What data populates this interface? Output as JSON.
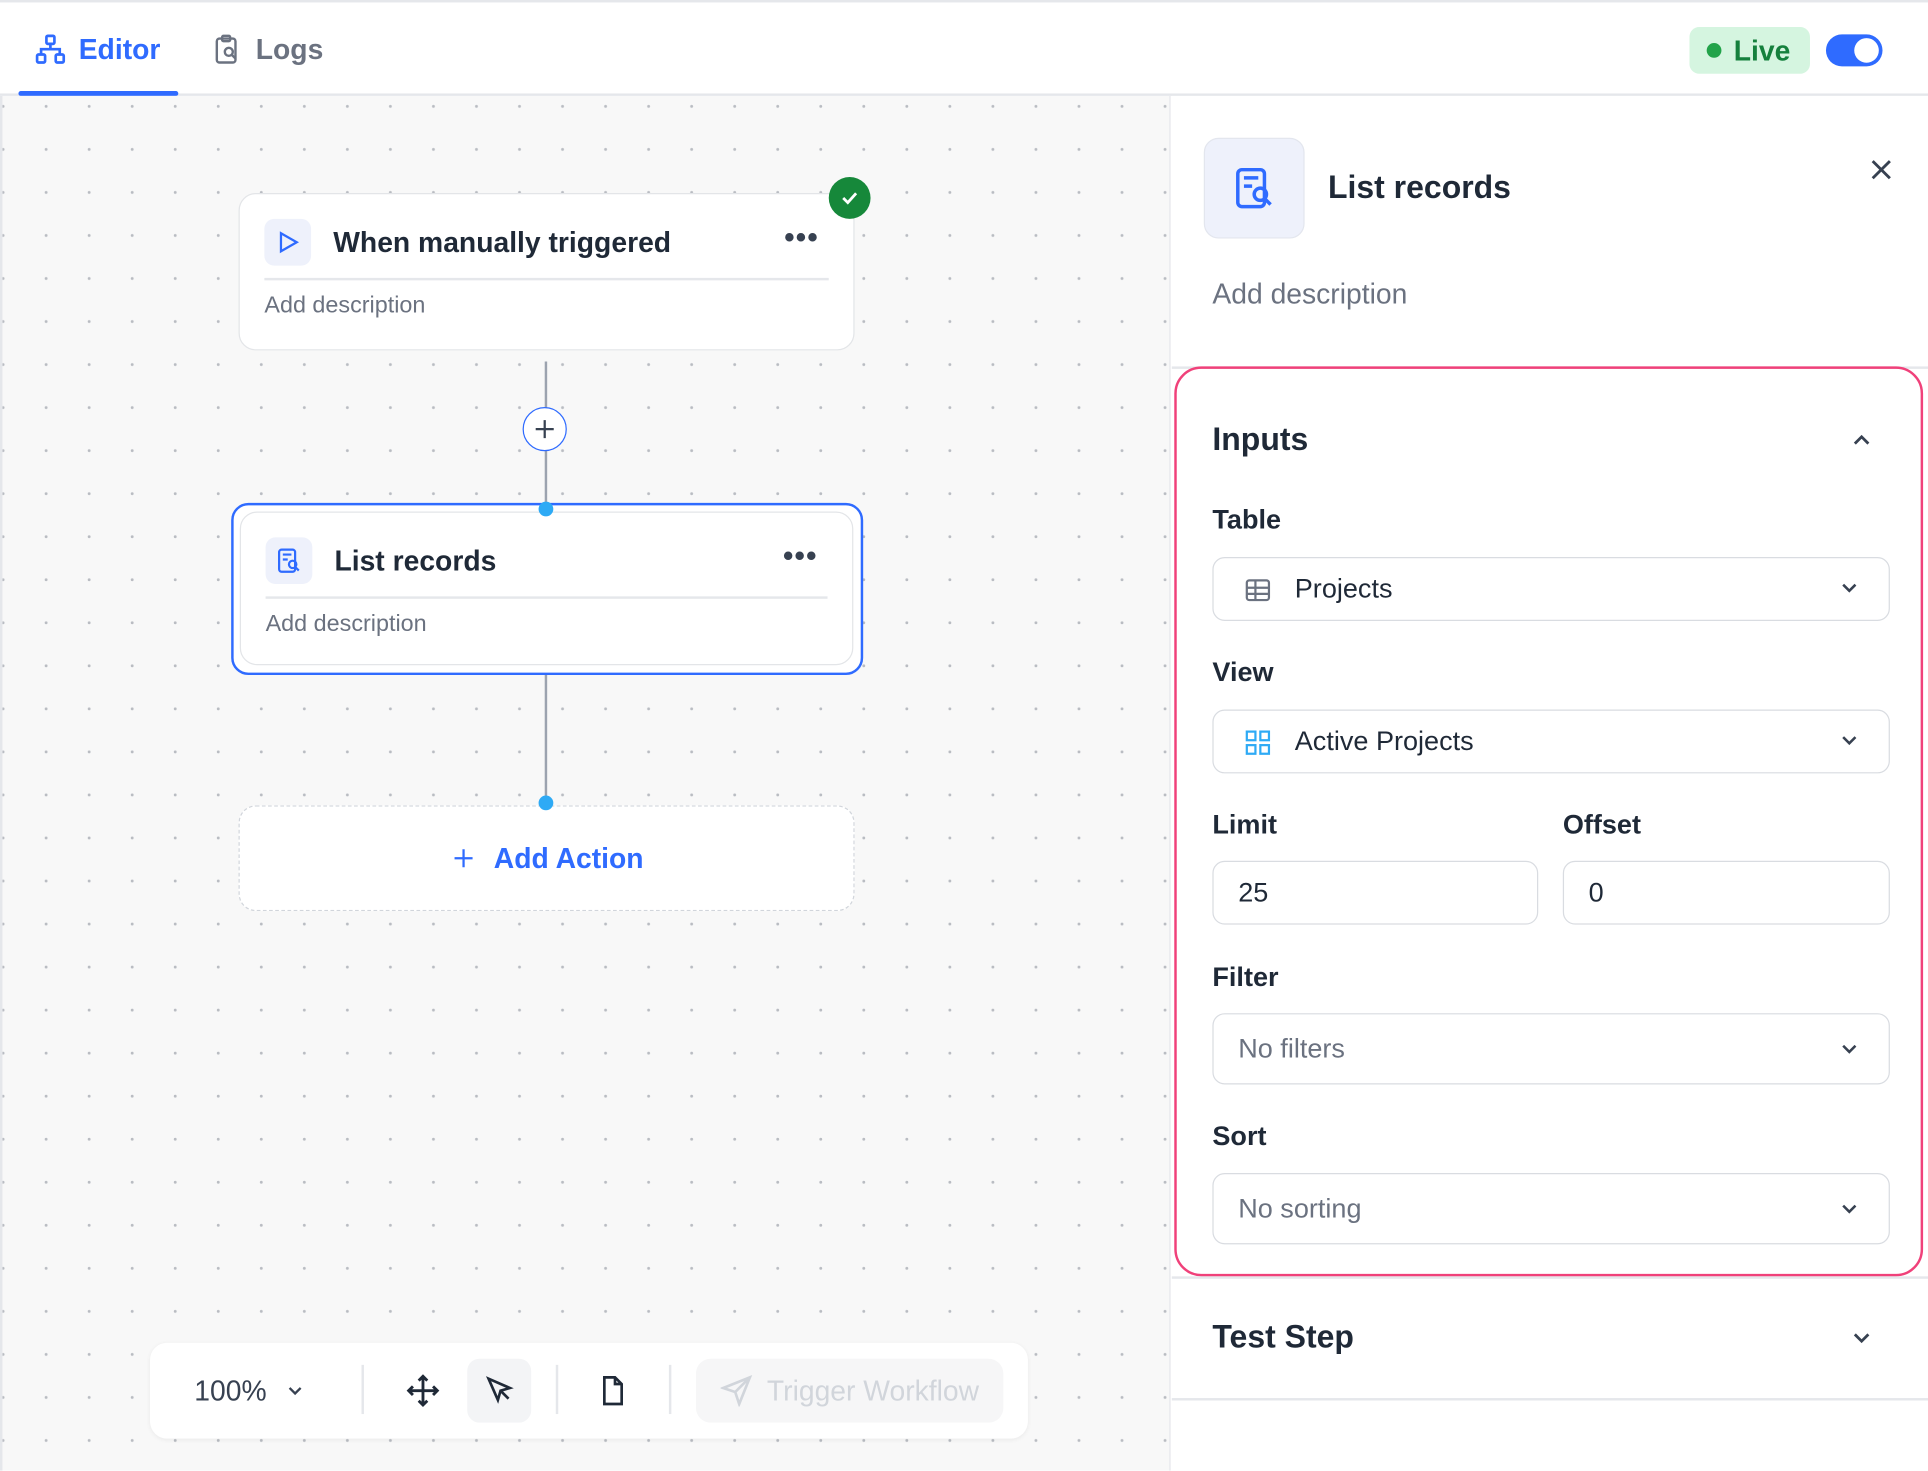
{
  "tabs": [
    {
      "label": "Editor",
      "icon": "workflow-icon",
      "active": true
    },
    {
      "label": "Logs",
      "icon": "clipboard-search-icon",
      "active": false
    }
  ],
  "status": {
    "label": "Live",
    "toggle_on": true,
    "accent": "#2f6bff",
    "live_color": "#16a34a"
  },
  "canvas": {
    "trigger_node": {
      "title": "When manually triggered",
      "description": "Add description",
      "status": "success"
    },
    "action_node": {
      "title": "List records",
      "description": "Add description",
      "selected": true
    },
    "add_action": {
      "label": "Add Action"
    }
  },
  "toolbar": {
    "zoom": "100%",
    "trigger_label": "Trigger Workflow"
  },
  "panel": {
    "title": "List records",
    "description_placeholder": "Add description",
    "inputs": {
      "heading": "Inputs",
      "table_label": "Table",
      "table_value": "Projects",
      "view_label": "View",
      "view_value": "Active Projects",
      "limit_label": "Limit",
      "limit_value": "25",
      "offset_label": "Offset",
      "offset_value": "0",
      "filter_label": "Filter",
      "filter_value": "No filters",
      "sort_label": "Sort",
      "sort_value": "No sorting"
    },
    "test_step": {
      "heading": "Test Step"
    }
  }
}
